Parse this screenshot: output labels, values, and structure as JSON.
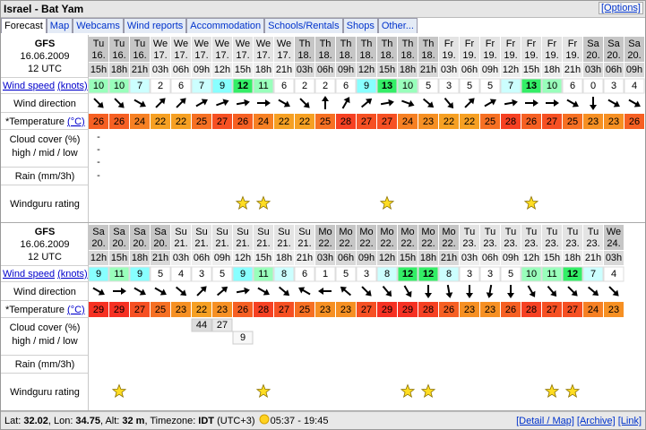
{
  "header": {
    "title": "Israel - Bat Yam",
    "options": "[Options]"
  },
  "tabs": [
    "Forecast",
    "Map",
    "Webcams",
    "Wind reports",
    "Accommodation",
    "Schools/Rentals",
    "Shops",
    "Other..."
  ],
  "row_labels": {
    "wind_speed": "Wind speed",
    "knots": "(knots)",
    "wind_direction": "Wind direction",
    "temperature": "*Temperature",
    "celsius": "(°C)",
    "cloud": "Cloud cover (%)",
    "cloud_levels": "high / mid / low",
    "rain": "Rain (mm/3h)",
    "rating": "Windguru rating"
  },
  "tables": [
    {
      "model": "GFS",
      "init_date": "16.06.2009",
      "init_time": "12 UTC",
      "days": [
        "Tu",
        "Tu",
        "Tu",
        "We",
        "We",
        "We",
        "We",
        "We",
        "We",
        "We",
        "Th",
        "Th",
        "Th",
        "Th",
        "Th",
        "Th",
        "Th",
        "Fr",
        "Fr",
        "Fr",
        "Fr",
        "Fr",
        "Fr",
        "Fr",
        "Sa",
        "Sa",
        "Sa"
      ],
      "dates": [
        "16.",
        "16.",
        "16.",
        "17.",
        "17.",
        "17.",
        "17.",
        "17.",
        "17.",
        "17.",
        "18.",
        "18.",
        "18.",
        "18.",
        "18.",
        "18.",
        "18.",
        "19.",
        "19.",
        "19.",
        "19.",
        "19.",
        "19.",
        "19.",
        "20.",
        "20.",
        "20."
      ],
      "hours": [
        "15h",
        "18h",
        "21h",
        "03h",
        "06h",
        "09h",
        "12h",
        "15h",
        "18h",
        "21h",
        "03h",
        "06h",
        "09h",
        "12h",
        "15h",
        "18h",
        "21h",
        "03h",
        "06h",
        "09h",
        "12h",
        "15h",
        "18h",
        "21h",
        "03h",
        "06h",
        "09h"
      ],
      "wind_speed": [
        10,
        10,
        7,
        2,
        6,
        7,
        9,
        12,
        11,
        6,
        2,
        2,
        6,
        9,
        13,
        10,
        5,
        3,
        5,
        5,
        7,
        13,
        10,
        6,
        0,
        3,
        4
      ],
      "wind_direction": [
        315,
        315,
        300,
        225,
        225,
        240,
        250,
        260,
        270,
        300,
        315,
        180,
        210,
        230,
        260,
        290,
        310,
        320,
        225,
        240,
        260,
        270,
        270,
        300,
        0,
        300,
        300
      ],
      "temperature": [
        26,
        26,
        24,
        22,
        22,
        25,
        27,
        26,
        24,
        22,
        22,
        25,
        28,
        27,
        27,
        24,
        23,
        22,
        22,
        25,
        28,
        26,
        27,
        25,
        23,
        23,
        26
      ],
      "cloud_high": [
        "-",
        null,
        null,
        null,
        null,
        null,
        null,
        null,
        null,
        null,
        null,
        null,
        null,
        null,
        null,
        null,
        null,
        null,
        null,
        null,
        null,
        null,
        null,
        null,
        null,
        null,
        null
      ],
      "cloud_mid": [
        "-",
        null,
        null,
        null,
        null,
        null,
        null,
        null,
        null,
        null,
        null,
        null,
        null,
        null,
        null,
        null,
        null,
        null,
        null,
        null,
        null,
        null,
        null,
        null,
        null,
        null,
        null
      ],
      "cloud_low": [
        "-",
        null,
        null,
        null,
        null,
        null,
        null,
        null,
        null,
        null,
        null,
        null,
        null,
        null,
        null,
        null,
        null,
        null,
        null,
        null,
        null,
        null,
        null,
        null,
        null,
        null,
        null
      ],
      "rain": [
        "-",
        null,
        null,
        null,
        null,
        null,
        null,
        null,
        null,
        null,
        null,
        null,
        null,
        null,
        null,
        null,
        null,
        null,
        null,
        null,
        null,
        null,
        null,
        null,
        null,
        null,
        null
      ],
      "rating": [
        0,
        0,
        0,
        0,
        0,
        0,
        0,
        1,
        1,
        0,
        0,
        0,
        0,
        0,
        1,
        0,
        0,
        0,
        0,
        0,
        0,
        1,
        0,
        0,
        0,
        0,
        0
      ]
    },
    {
      "model": "GFS",
      "init_date": "16.06.2009",
      "init_time": "12 UTC",
      "days": [
        "Sa",
        "Sa",
        "Sa",
        "Sa",
        "Su",
        "Su",
        "Su",
        "Su",
        "Su",
        "Su",
        "Su",
        "Mo",
        "Mo",
        "Mo",
        "Mo",
        "Mo",
        "Mo",
        "Mo",
        "Tu",
        "Tu",
        "Tu",
        "Tu",
        "Tu",
        "Tu",
        "Tu",
        "We"
      ],
      "dates": [
        "20.",
        "20.",
        "20.",
        "20.",
        "21.",
        "21.",
        "21.",
        "21.",
        "21.",
        "21.",
        "21.",
        "22.",
        "22.",
        "22.",
        "22.",
        "22.",
        "22.",
        "22.",
        "23.",
        "23.",
        "23.",
        "23.",
        "23.",
        "23.",
        "23.",
        "24."
      ],
      "hours": [
        "12h",
        "15h",
        "18h",
        "21h",
        "03h",
        "06h",
        "09h",
        "12h",
        "15h",
        "18h",
        "21h",
        "03h",
        "06h",
        "09h",
        "12h",
        "15h",
        "18h",
        "21h",
        "03h",
        "06h",
        "09h",
        "12h",
        "15h",
        "18h",
        "21h",
        "03h"
      ],
      "wind_speed": [
        9,
        11,
        9,
        5,
        4,
        3,
        5,
        9,
        11,
        8,
        6,
        1,
        5,
        3,
        8,
        12,
        12,
        8,
        3,
        3,
        5,
        10,
        11,
        12,
        7,
        4
      ],
      "wind_direction": [
        300,
        270,
        300,
        300,
        310,
        225,
        230,
        260,
        300,
        310,
        120,
        90,
        130,
        315,
        320,
        330,
        0,
        350,
        0,
        10,
        0,
        330,
        320,
        315,
        310,
        315
      ],
      "temperature": [
        29,
        29,
        27,
        25,
        23,
        22,
        23,
        26,
        28,
        27,
        25,
        23,
        23,
        27,
        29,
        29,
        28,
        26,
        23,
        23,
        26,
        28,
        27,
        27,
        24,
        23
      ],
      "cloud_high": [
        null,
        null,
        null,
        null,
        null,
        44,
        27,
        null,
        null,
        null,
        null,
        null,
        null,
        null,
        null,
        null,
        null,
        null,
        null,
        null,
        null,
        null,
        null,
        null,
        null,
        null
      ],
      "cloud_mid": [
        null,
        null,
        null,
        null,
        null,
        null,
        null,
        9,
        null,
        null,
        null,
        null,
        null,
        null,
        null,
        null,
        null,
        null,
        null,
        null,
        null,
        null,
        null,
        null,
        null,
        null
      ],
      "cloud_low": [
        null,
        null,
        null,
        null,
        null,
        null,
        null,
        null,
        null,
        null,
        null,
        null,
        null,
        null,
        null,
        null,
        null,
        null,
        null,
        null,
        null,
        null,
        null,
        null,
        null,
        null
      ],
      "rain": [
        null,
        null,
        null,
        null,
        null,
        null,
        null,
        null,
        null,
        null,
        null,
        null,
        null,
        null,
        null,
        null,
        null,
        null,
        null,
        null,
        null,
        null,
        null,
        null,
        null,
        null
      ],
      "rating": [
        0,
        1,
        0,
        0,
        0,
        0,
        0,
        0,
        1,
        0,
        0,
        0,
        0,
        0,
        0,
        1,
        1,
        0,
        0,
        0,
        0,
        0,
        1,
        1,
        0,
        0
      ]
    }
  ],
  "footer": {
    "lat_label": "Lat:",
    "lat": "32.02",
    "lon_label": ", Lon:",
    "lon": "34.75",
    "alt_label": ", Alt:",
    "alt": "32 m",
    "tz_label": ", Timezone:",
    "tz": "IDT",
    "utc": "(UTC+3)",
    "sun": "05:37 - 19:45",
    "links": [
      "[Detail / Map]",
      "[Archive]",
      "[Link]"
    ]
  }
}
